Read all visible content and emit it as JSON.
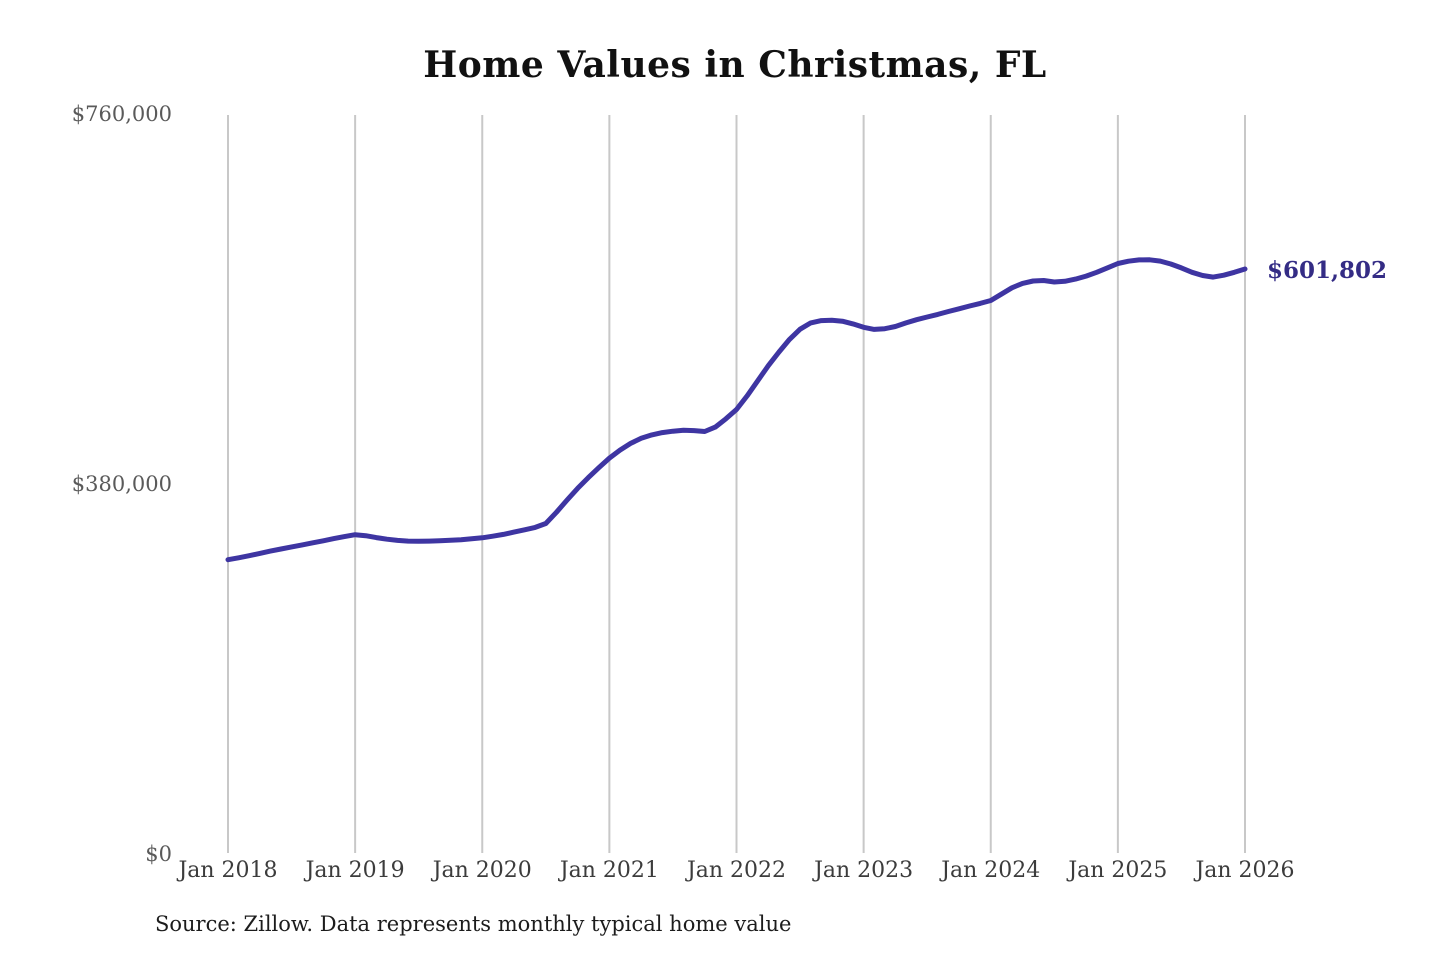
{
  "title": "Home Values in Christmas, FL",
  "source_note": "Source: Zillow. Data represents monthly typical home value",
  "end_label": "$601,802",
  "colors": {
    "line": "#3e35a2",
    "end_label": "#342c85",
    "gridline": "#c8c8c8",
    "y_tick": "#5a5a5a",
    "x_tick": "#3c3c3c",
    "title": "#111111",
    "source": "#1c1c1c",
    "background": "#ffffff"
  },
  "chart_data": {
    "type": "line",
    "title": "Home Values in Christmas, FL",
    "xlabel": "",
    "ylabel": "",
    "ylim": [
      0,
      760000
    ],
    "grid": "vertical-only",
    "legend": "none",
    "y_ticks": [
      {
        "label": "$0",
        "value": 0
      },
      {
        "label": "$380,000",
        "value": 380000
      },
      {
        "label": "$760,000",
        "value": 760000
      }
    ],
    "x_tick_labels": [
      "Jan 2018",
      "Jan 2019",
      "Jan 2020",
      "Jan 2021",
      "Jan 2022",
      "Jan 2023",
      "Jan 2024",
      "Jan 2025",
      "Jan 2026"
    ],
    "annotation": {
      "text": "$601,802",
      "attached_to": "last-point"
    },
    "series": [
      {
        "name": "Monthly typical home value",
        "unit": "USD",
        "x_start": "2018-01",
        "x_interval": "month",
        "end_value": 601802,
        "values": [
          303300,
          305200,
          307400,
          309800,
          312100,
          314300,
          316400,
          318500,
          320600,
          322700,
          324900,
          327000,
          329000,
          327900,
          326000,
          324300,
          323100,
          322400,
          322200,
          322400,
          322800,
          323300,
          323800,
          324700,
          325800,
          327400,
          329300,
          331600,
          334000,
          336500,
          340500,
          352000,
          364500,
          376500,
          387500,
          397800,
          407600,
          415800,
          422700,
          428000,
          431500,
          433800,
          435300,
          436300,
          435900,
          434900,
          439500,
          448000,
          457500,
          471500,
          487000,
          502500,
          516500,
          529500,
          540000,
          546500,
          548800,
          549200,
          548200,
          545500,
          542000,
          539800,
          540500,
          542800,
          546500,
          549800,
          552500,
          555200,
          558200,
          561000,
          563800,
          566500,
          569500,
          576000,
          582500,
          587000,
          589500,
          590000,
          588500,
          589200,
          591500,
          594500,
          598500,
          603000,
          607500,
          609800,
          611200,
          611300,
          610000,
          607000,
          603000,
          598500,
          595200,
          593500,
          595500,
          598500,
          601802
        ]
      }
    ]
  },
  "geometry_note": "values in USD; x axis monthly Jan 2018 through Jan 2026"
}
